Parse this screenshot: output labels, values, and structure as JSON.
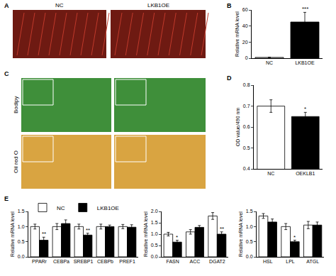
{
  "panel_labels": [
    "A",
    "B",
    "C",
    "D",
    "E"
  ],
  "images": {
    "A": {
      "columns": [
        "NC",
        "LKB1OE"
      ],
      "color": "#6e1a12"
    },
    "C": {
      "rows": [
        {
          "label": "Bodipy",
          "color": "#3f8f3a"
        },
        {
          "label": "Oil red O",
          "color": "#d9a441"
        }
      ]
    }
  },
  "chart_data": [
    {
      "type": "bar",
      "y_label": "Relative mRNA level",
      "categories": [
        "NC",
        "LKB1OE"
      ],
      "values": [
        1,
        45
      ],
      "errors": [
        0.3,
        12
      ],
      "colors": [
        "#ffffff",
        "#000000"
      ],
      "ylim": [
        0,
        60
      ],
      "yticks": [
        0,
        20,
        40,
        60
      ],
      "grid": false,
      "annotations": [
        {
          "category": "LKB1OE",
          "text": "***"
        }
      ]
    },
    {
      "type": "bar",
      "y_label": "OD value/490 nm",
      "categories": [
        "NC",
        "OEKLB1"
      ],
      "values": [
        0.7,
        0.65
      ],
      "errors": [
        0.03,
        0.02
      ],
      "colors": [
        "#ffffff",
        "#000000"
      ],
      "ylim": [
        0.4,
        0.8
      ],
      "yticks": [
        0.4,
        0.5,
        0.6,
        0.7,
        0.8
      ],
      "grid": false,
      "annotations": [
        {
          "category": "OEKLB1",
          "text": "*"
        }
      ]
    },
    {
      "type": "bar",
      "y_label": "Relative mRNA level",
      "legend": "top left",
      "categories": [
        "PPARr",
        "CEBPa",
        "SREBP1",
        "CEBPb",
        "PREF1"
      ],
      "series": [
        {
          "name": "NC",
          "color": "#ffffff",
          "values": [
            1.0,
            1.0,
            1.0,
            1.0,
            1.0
          ],
          "errors": [
            0.08,
            0.1,
            0.08,
            0.08,
            0.07
          ]
        },
        {
          "name": "LKB1OE",
          "color": "#000000",
          "values": [
            0.55,
            1.1,
            0.72,
            1.0,
            0.98
          ],
          "errors": [
            0.1,
            0.12,
            0.06,
            0.05,
            0.08
          ]
        }
      ],
      "ylim": [
        0,
        1.5
      ],
      "yticks": [
        {
          "value": 0,
          "label": "0.0"
        },
        0.5,
        {
          "value": 1,
          "label": "1.0"
        },
        1.5
      ],
      "grid": false,
      "annotations": [
        {
          "category": "PPARr",
          "series": "LKB1OE",
          "text": "**"
        },
        {
          "category": "SREBP1",
          "series": "LKB1OE",
          "text": "**"
        }
      ]
    },
    {
      "type": "bar",
      "y_label": "Relative mRNA level",
      "categories": [
        "FASN",
        "ACC",
        "DGAT2"
      ],
      "series": [
        {
          "name": "NC",
          "color": "#ffffff",
          "values": [
            1.0,
            1.1,
            1.8
          ],
          "errors": [
            0.08,
            0.1,
            0.15
          ]
        },
        {
          "name": "LKB1OE",
          "color": "#000000",
          "values": [
            0.65,
            1.3,
            1.0
          ],
          "errors": [
            0.08,
            0.08,
            0.1
          ]
        }
      ],
      "ylim": [
        0,
        2
      ],
      "yticks": [
        {
          "value": 0,
          "label": "0.0"
        },
        0.5,
        {
          "value": 1,
          "label": "1.0"
        },
        1.5,
        {
          "value": 2,
          "label": "2.0"
        }
      ],
      "grid": false,
      "annotations": [
        {
          "category": "FASN",
          "series": "LKB1OE",
          "text": "*"
        },
        {
          "category": "DGAT2",
          "series": "LKB1OE",
          "text": "**"
        }
      ]
    },
    {
      "type": "bar",
      "y_label": "Relative mRNA level",
      "categories": [
        "HSL",
        "LPL",
        "ATGL"
      ],
      "series": [
        {
          "name": "NC",
          "color": "#ffffff",
          "values": [
            1.35,
            1.0,
            1.05
          ],
          "errors": [
            0.08,
            0.1,
            0.12
          ]
        },
        {
          "name": "LKB1OE",
          "color": "#000000",
          "values": [
            1.15,
            0.5,
            1.05
          ],
          "errors": [
            0.1,
            0.05,
            0.1
          ]
        }
      ],
      "ylim": [
        0,
        1.5
      ],
      "yticks": [
        {
          "value": 0,
          "label": "0.0"
        },
        0.5,
        {
          "value": 1,
          "label": "1.0"
        },
        1.5
      ],
      "grid": false,
      "annotations": [
        {
          "category": "LPL",
          "series": "LKB1OE",
          "text": "*"
        }
      ]
    }
  ]
}
